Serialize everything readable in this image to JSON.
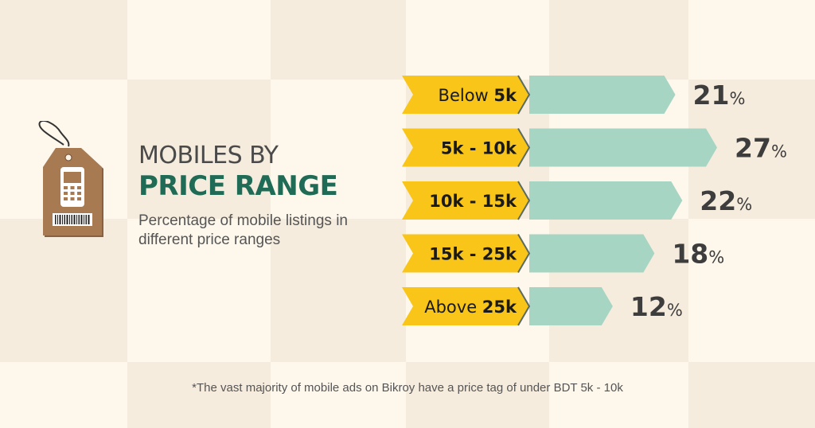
{
  "title": {
    "line1": "MOBILES BY",
    "line2": "PRICE RANGE"
  },
  "subtitle": "Percentage of mobile listings in different price ranges",
  "footnote": "*The vast majority of mobile ads on Bikroy have a price tag of under BDT 5k - 10k",
  "colors": {
    "label_fill": "#f8c518",
    "bar_fill": "#a7d5c4",
    "value_text": "#3d3d3d",
    "title_accent": "#1f6b55",
    "tag_body": "#a77a52"
  },
  "tag_icon": "price-tag-mobile-icon",
  "chart_data": {
    "type": "bar",
    "orientation": "horizontal",
    "categories": [
      {
        "normal": "Below ",
        "bold": "5k"
      },
      {
        "normal": "",
        "bold": "5k - 10k"
      },
      {
        "normal": "",
        "bold": "10k - 15k"
      },
      {
        "normal": "",
        "bold": "15k - 25k"
      },
      {
        "normal": "Above ",
        "bold": "25k"
      }
    ],
    "values": [
      21,
      27,
      22,
      18,
      12
    ],
    "value_labels": [
      "21",
      "27",
      "22",
      "18",
      "12"
    ],
    "unit": "%",
    "xlim": [
      0,
      27
    ]
  }
}
